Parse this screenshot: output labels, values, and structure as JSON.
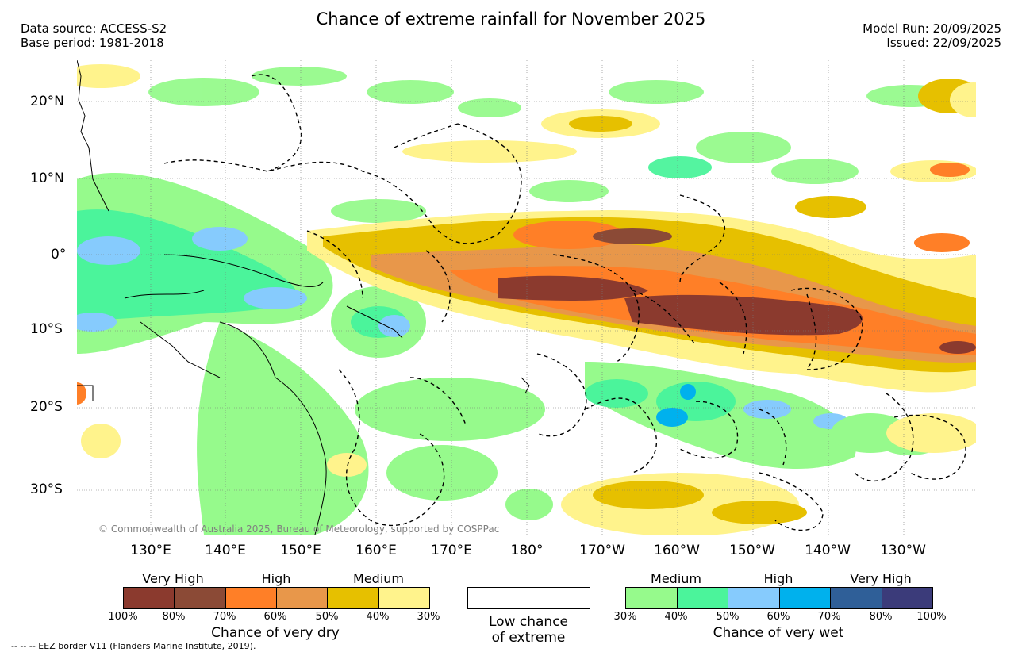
{
  "header": {
    "title": "Chance of extreme rainfall for November 2025",
    "data_source": "Data source: ACCESS-S2",
    "base_period": "Base period: 1981-2018",
    "model_run": "Model Run: 20/09/2025",
    "issued": "Issued: 22/09/2025"
  },
  "map": {
    "lat_labels": [
      "20°N",
      "10°N",
      "0°",
      "10°S",
      "20°S",
      "30°S"
    ],
    "lon_labels": [
      "130°E",
      "140°E",
      "150°E",
      "160°E",
      "170°E",
      "180°",
      "170°W",
      "160°W",
      "150°W",
      "140°W",
      "130°W"
    ],
    "copyright": "© Commonwealth of Australia 2025, Bureau of Meteorology, supported by COSPPac"
  },
  "legend": {
    "dry": {
      "categories": [
        "Very High",
        "High",
        "Medium"
      ],
      "ticks": [
        "100%",
        "80%",
        "70%",
        "60%",
        "50%",
        "40%",
        "30%"
      ],
      "colors": [
        "#8b3a2e",
        "#8b4a36",
        "#ff7f27",
        "#e8974a",
        "#e6c000",
        "#fff38c"
      ],
      "title": "Chance of very dry"
    },
    "low": {
      "line1": "Low chance",
      "line2": "of extreme"
    },
    "wet": {
      "categories": [
        "Medium",
        "High",
        "Very High"
      ],
      "ticks": [
        "30%",
        "40%",
        "50%",
        "60%",
        "70%",
        "80%",
        "100%"
      ],
      "colors": [
        "#96fa8c",
        "#4bf49b",
        "#86cbfd",
        "#00b1ed",
        "#2f5f98",
        "#3b3b7a"
      ],
      "title": "Chance of very wet"
    }
  },
  "footer": {
    "eez": "-- -- -- EEZ border V11 (Flanders Marine Institute, 2019)."
  }
}
